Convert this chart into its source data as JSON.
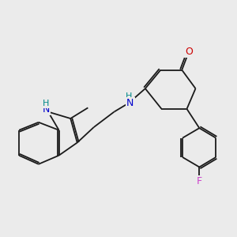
{
  "bg_color": "#ebebeb",
  "bond_color": "#1a1a1a",
  "bond_width": 1.3,
  "dbo": 0.07,
  "atoms": {
    "O": {
      "color": "#cc0000",
      "fontsize": 9
    },
    "N": {
      "color": "#0000cc",
      "fontsize": 9
    },
    "NH": {
      "color": "#0000cc",
      "fontsize": 9
    },
    "F": {
      "color": "#cc44cc",
      "fontsize": 9
    },
    "H": {
      "color": "#008888",
      "fontsize": 9
    }
  },
  "figsize": [
    3.0,
    3.0
  ],
  "dpi": 100
}
